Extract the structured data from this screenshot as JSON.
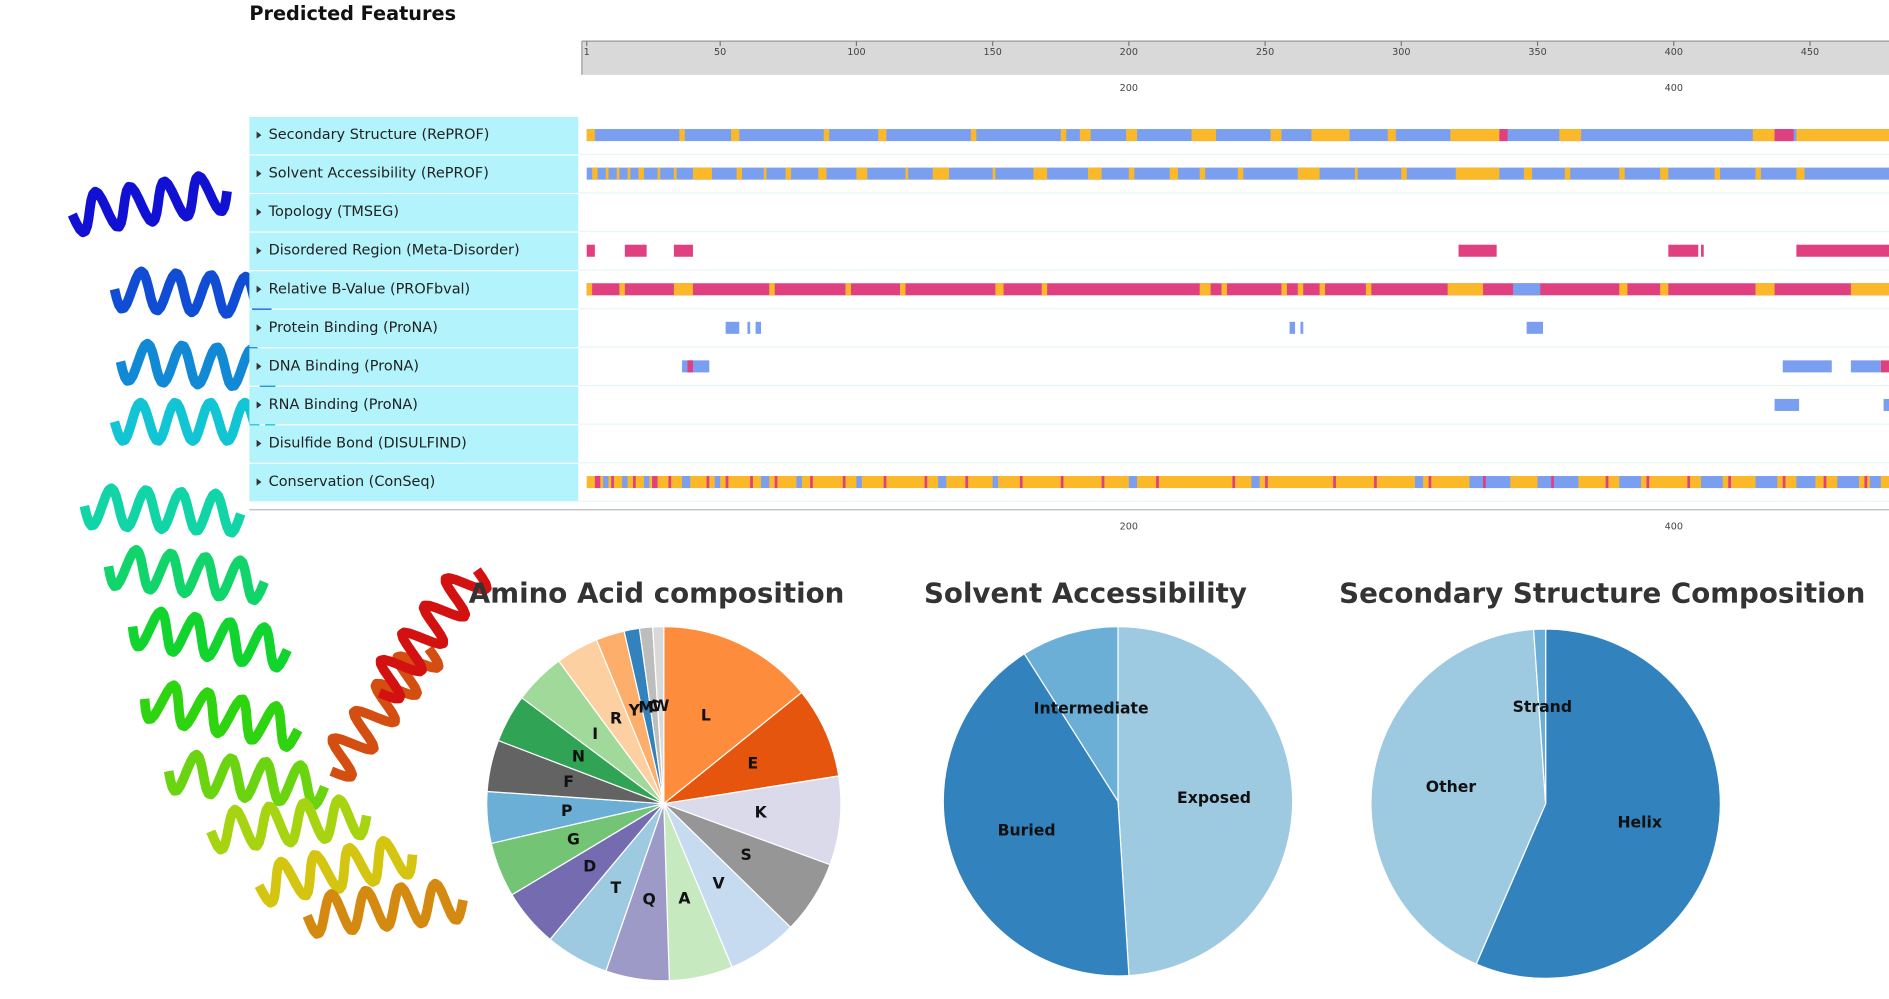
{
  "title": "Predicted Features",
  "ruler": {
    "xlim": [
      1,
      479
    ],
    "ticks": [
      1,
      50,
      100,
      150,
      200,
      250,
      300,
      350,
      400,
      450
    ],
    "scale_labels": [
      200,
      400
    ]
  },
  "tracks": [
    {
      "label": "Secondary Structure (RePROF)",
      "segments": [
        [
          1,
          479,
          "#7b9ff0"
        ],
        [
          1,
          4,
          "#fbb829"
        ],
        [
          35,
          37,
          "#fbb829"
        ],
        [
          54,
          57,
          "#fbb829"
        ],
        [
          88,
          90,
          "#fbb829"
        ],
        [
          108,
          111,
          "#fbb829"
        ],
        [
          142,
          144,
          "#fbb829"
        ],
        [
          175,
          177,
          "#fbb829"
        ],
        [
          182,
          186,
          "#fbb829"
        ],
        [
          199,
          203,
          "#fbb829"
        ],
        [
          223,
          232,
          "#fbb829"
        ],
        [
          252,
          256,
          "#fbb829"
        ],
        [
          267,
          281,
          "#fbb829"
        ],
        [
          295,
          298,
          "#fbb829"
        ],
        [
          318,
          336,
          "#fbb829"
        ],
        [
          336,
          339,
          "#e0407f"
        ],
        [
          358,
          366,
          "#fbb829"
        ],
        [
          429,
          437,
          "#fbb829"
        ],
        [
          437,
          444,
          "#e0407f"
        ],
        [
          445,
          479,
          "#fbb829"
        ]
      ]
    },
    {
      "label": "Solvent Accessibility (RePROF)",
      "segments": [
        [
          1,
          479,
          "#7b9ff0"
        ],
        [
          3,
          5,
          "#fbb829"
        ],
        [
          8,
          9,
          "#fbb829"
        ],
        [
          12,
          13,
          "#fbb829"
        ],
        [
          16,
          17,
          "#fbb829"
        ],
        [
          20,
          22,
          "#fbb829"
        ],
        [
          27,
          28,
          "#fbb829"
        ],
        [
          33,
          34,
          "#fbb829"
        ],
        [
          40,
          47,
          "#fbb829"
        ],
        [
          56,
          58,
          "#fbb829"
        ],
        [
          66,
          67,
          "#fbb829"
        ],
        [
          74,
          76,
          "#fbb829"
        ],
        [
          86,
          89,
          "#fbb829"
        ],
        [
          100,
          104,
          "#fbb829"
        ],
        [
          118,
          119,
          "#fbb829"
        ],
        [
          128,
          134,
          "#fbb829"
        ],
        [
          150,
          151,
          "#fbb829"
        ],
        [
          165,
          170,
          "#fbb829"
        ],
        [
          185,
          190,
          "#fbb829"
        ],
        [
          200,
          202,
          "#fbb829"
        ],
        [
          215,
          218,
          "#fbb829"
        ],
        [
          226,
          228,
          "#fbb829"
        ],
        [
          240,
          242,
          "#fbb829"
        ],
        [
          262,
          270,
          "#fbb829"
        ],
        [
          283,
          284,
          "#fbb829"
        ],
        [
          300,
          302,
          "#fbb829"
        ],
        [
          320,
          336,
          "#fbb829"
        ],
        [
          345,
          348,
          "#fbb829"
        ],
        [
          360,
          362,
          "#fbb829"
        ],
        [
          380,
          382,
          "#fbb829"
        ],
        [
          395,
          398,
          "#fbb829"
        ],
        [
          415,
          417,
          "#fbb829"
        ],
        [
          430,
          432,
          "#fbb829"
        ],
        [
          445,
          448,
          "#fbb829"
        ]
      ]
    },
    {
      "label": "Topology (TMSEG)",
      "segments": []
    },
    {
      "label": "Disordered Region (Meta-Disorder)",
      "segments": [
        [
          1,
          4,
          "#e0407f"
        ],
        [
          15,
          23,
          "#e0407f"
        ],
        [
          33,
          40,
          "#e0407f"
        ],
        [
          321,
          335,
          "#e0407f"
        ],
        [
          398,
          409,
          "#e0407f"
        ],
        [
          410,
          411,
          "#e0407f"
        ],
        [
          445,
          479,
          "#e0407f"
        ]
      ]
    },
    {
      "label": "Relative B-Value (PROFbval)",
      "segments": [
        [
          1,
          479,
          "#e0407f"
        ],
        [
          1,
          3,
          "#fbb829"
        ],
        [
          13,
          15,
          "#fbb829"
        ],
        [
          33,
          40,
          "#fbb829"
        ],
        [
          68,
          70,
          "#fbb829"
        ],
        [
          96,
          98,
          "#fbb829"
        ],
        [
          116,
          118,
          "#fbb829"
        ],
        [
          151,
          154,
          "#fbb829"
        ],
        [
          168,
          170,
          "#fbb829"
        ],
        [
          226,
          230,
          "#fbb829"
        ],
        [
          234,
          236,
          "#fbb829"
        ],
        [
          256,
          258,
          "#fbb829"
        ],
        [
          262,
          264,
          "#fbb829"
        ],
        [
          270,
          272,
          "#fbb829"
        ],
        [
          287,
          289,
          "#fbb829"
        ],
        [
          317,
          330,
          "#fbb829"
        ],
        [
          341,
          351,
          "#7b9ff0"
        ],
        [
          380,
          383,
          "#fbb829"
        ],
        [
          395,
          398,
          "#fbb829"
        ],
        [
          430,
          437,
          "#fbb829"
        ],
        [
          465,
          479,
          "#fbb829"
        ]
      ]
    },
    {
      "label": "Protein Binding (ProNA)",
      "segments": [
        [
          52,
          57,
          "#7b9ff0"
        ],
        [
          60,
          61,
          "#7b9ff0"
        ],
        [
          63,
          65,
          "#7b9ff0"
        ],
        [
          259,
          261,
          "#7b9ff0"
        ],
        [
          263,
          264,
          "#7b9ff0"
        ],
        [
          346,
          352,
          "#7b9ff0"
        ]
      ]
    },
    {
      "label": "DNA Binding (ProNA)",
      "segments": [
        [
          36,
          46,
          "#7b9ff0"
        ],
        [
          38,
          40,
          "#e0407f"
        ],
        [
          440,
          458,
          "#7b9ff0"
        ],
        [
          465,
          476,
          "#7b9ff0"
        ],
        [
          476,
          479,
          "#e0407f"
        ]
      ]
    },
    {
      "label": "RNA Binding (ProNA)",
      "segments": [
        [
          437,
          446,
          "#7b9ff0"
        ],
        [
          477,
          479,
          "#7b9ff0"
        ]
      ]
    },
    {
      "label": "Disulfide Bond (DISULFIND)",
      "segments": []
    },
    {
      "label": "Conservation (ConSeq)",
      "segments": [
        [
          1,
          479,
          "#fbb829"
        ],
        [
          4,
          6,
          "#e0407f"
        ],
        [
          7,
          9,
          "#7b9ff0"
        ],
        [
          10,
          11,
          "#e0407f"
        ],
        [
          14,
          16,
          "#7b9ff0"
        ],
        [
          18,
          19,
          "#e0407f"
        ],
        [
          22,
          24,
          "#7b9ff0"
        ],
        [
          25,
          27,
          "#e0407f"
        ],
        [
          31,
          32,
          "#e0407f"
        ],
        [
          36,
          39,
          "#7b9ff0"
        ],
        [
          45,
          46,
          "#e0407f"
        ],
        [
          48,
          50,
          "#7b9ff0"
        ],
        [
          52,
          53,
          "#e0407f"
        ],
        [
          61,
          62,
          "#e0407f"
        ],
        [
          65,
          68,
          "#7b9ff0"
        ],
        [
          70,
          71,
          "#e0407f"
        ],
        [
          78,
          80,
          "#7b9ff0"
        ],
        [
          83,
          84,
          "#e0407f"
        ],
        [
          95,
          96,
          "#e0407f"
        ],
        [
          100,
          102,
          "#7b9ff0"
        ],
        [
          110,
          111,
          "#e0407f"
        ],
        [
          125,
          126,
          "#e0407f"
        ],
        [
          130,
          133,
          "#7b9ff0"
        ],
        [
          140,
          141,
          "#e0407f"
        ],
        [
          150,
          152,
          "#7b9ff0"
        ],
        [
          160,
          161,
          "#e0407f"
        ],
        [
          175,
          176,
          "#e0407f"
        ],
        [
          190,
          191,
          "#e0407f"
        ],
        [
          200,
          203,
          "#7b9ff0"
        ],
        [
          210,
          211,
          "#e0407f"
        ],
        [
          238,
          239,
          "#e0407f"
        ],
        [
          245,
          248,
          "#7b9ff0"
        ],
        [
          250,
          251,
          "#e0407f"
        ],
        [
          275,
          276,
          "#e0407f"
        ],
        [
          290,
          291,
          "#e0407f"
        ],
        [
          305,
          308,
          "#7b9ff0"
        ],
        [
          310,
          311,
          "#e0407f"
        ],
        [
          325,
          340,
          "#7b9ff0"
        ],
        [
          330,
          331,
          "#e0407f"
        ],
        [
          350,
          365,
          "#7b9ff0"
        ],
        [
          355,
          356,
          "#e0407f"
        ],
        [
          375,
          376,
          "#e0407f"
        ],
        [
          380,
          388,
          "#7b9ff0"
        ],
        [
          390,
          391,
          "#e0407f"
        ],
        [
          405,
          406,
          "#e0407f"
        ],
        [
          410,
          418,
          "#7b9ff0"
        ],
        [
          420,
          421,
          "#e0407f"
        ],
        [
          430,
          438,
          "#7b9ff0"
        ],
        [
          440,
          441,
          "#e0407f"
        ],
        [
          445,
          452,
          "#7b9ff0"
        ],
        [
          455,
          456,
          "#e0407f"
        ],
        [
          460,
          468,
          "#7b9ff0"
        ],
        [
          470,
          471,
          "#e0407f"
        ],
        [
          472,
          476,
          "#7b9ff0"
        ]
      ]
    }
  ],
  "chart_data": [
    {
      "type": "pie",
      "title": "Amino Acid composition",
      "categories": [
        "L",
        "E",
        "K",
        "S",
        "V",
        "A",
        "Q",
        "T",
        "D",
        "G",
        "P",
        "F",
        "N",
        "I",
        "R",
        "Y",
        "M",
        "C",
        "W"
      ],
      "values": [
        14.2,
        8.3,
        8.1,
        6.7,
        6.4,
        5.8,
        5.8,
        5.8,
        5.3,
        5.0,
        4.7,
        4.7,
        4.4,
        4.7,
        3.9,
        2.6,
        1.4,
        1.2,
        1.0
      ],
      "colors": [
        "#fd8d3c",
        "#e6550d",
        "#dadaeb",
        "#969696",
        "#c6dbef",
        "#c7e9c0",
        "#9e9ac8",
        "#9ecae1",
        "#756bb1",
        "#74c476",
        "#6baed6",
        "#636363",
        "#31a354",
        "#a1d99b",
        "#fdd0a2",
        "#fdae6b",
        "#3182bd",
        "#bdbdbd",
        "#d9d9d9"
      ]
    },
    {
      "type": "pie",
      "title": "Solvent Accessibility",
      "categories": [
        "Exposed",
        "Buried",
        "Intermediate"
      ],
      "values": [
        49,
        42,
        9
      ],
      "colors": [
        "#9ecae1",
        "#3182bd",
        "#6baed6"
      ]
    },
    {
      "type": "pie",
      "title": "Secondary Structure Composition",
      "categories": [
        "Helix",
        "Other",
        "Strand"
      ],
      "values": [
        56.5,
        42.4,
        1.1
      ],
      "colors": [
        "#3182bd",
        "#9ecae1",
        "#6baed6"
      ]
    }
  ]
}
